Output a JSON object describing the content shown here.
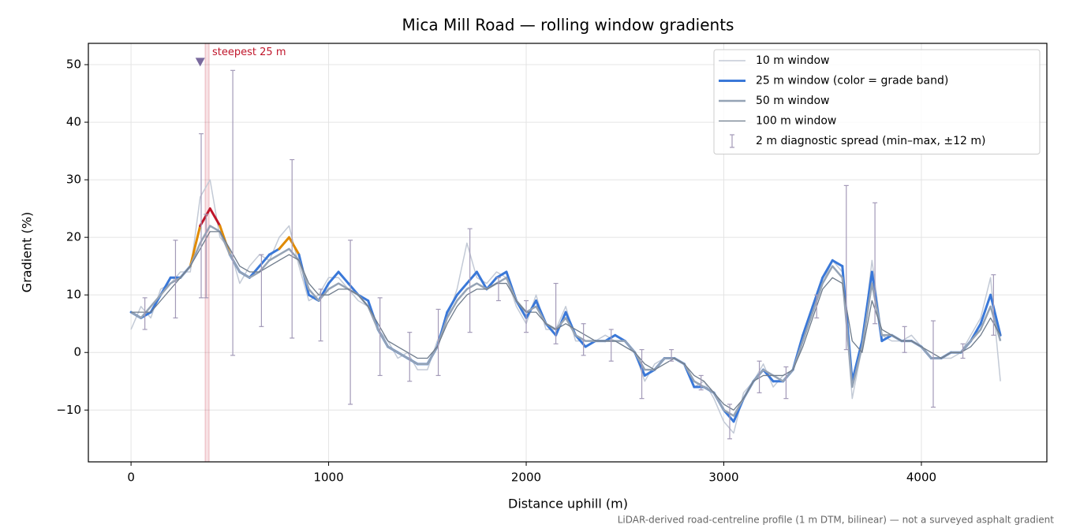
{
  "chart_data": {
    "type": "line",
    "title": "Mica Mill Road — rolling window gradients",
    "xlabel": "Distance uphill (m)",
    "ylabel": "Gradient (%)",
    "footnote": "LiDAR-derived road-centreline profile (1 m DTM, bilinear) — not a surveyed asphalt gradient",
    "xlim": [
      -216,
      4635
    ],
    "ylim": [
      -19,
      53.7
    ],
    "xticks": [
      0,
      1000,
      2000,
      3000,
      4000
    ],
    "yticks": [
      {
        "value": -10,
        "label": "−10"
      },
      0,
      10,
      20,
      30,
      40,
      50
    ],
    "grid": true,
    "legend": "upper right",
    "x": [
      0,
      50,
      100,
      150,
      200,
      250,
      300,
      350,
      400,
      450,
      500,
      550,
      600,
      650,
      700,
      750,
      800,
      850,
      900,
      950,
      1000,
      1050,
      1100,
      1150,
      1200,
      1250,
      1300,
      1350,
      1400,
      1450,
      1500,
      1550,
      1600,
      1650,
      1700,
      1750,
      1800,
      1850,
      1900,
      1950,
      2000,
      2050,
      2100,
      2150,
      2200,
      2250,
      2300,
      2350,
      2400,
      2450,
      2500,
      2550,
      2600,
      2650,
      2700,
      2750,
      2800,
      2850,
      2900,
      2950,
      3000,
      3050,
      3100,
      3150,
      3200,
      3250,
      3300,
      3350,
      3400,
      3450,
      3500,
      3550,
      3600,
      3650,
      3700,
      3750,
      3800,
      3850,
      3900,
      3950,
      4000,
      4050,
      4100,
      4150,
      4200,
      4250,
      4300,
      4350,
      4400
    ],
    "series": [
      {
        "name": "10 m window",
        "color": "#c3cad6",
        "width": 1.5,
        "values": [
          4,
          8,
          6,
          11,
          12,
          14,
          14,
          27,
          30,
          20,
          18,
          12,
          15,
          17,
          16,
          20,
          22,
          15,
          9,
          10,
          13,
          13,
          11,
          9,
          8,
          4,
          2,
          -1,
          0,
          -3,
          -3,
          2,
          6,
          11,
          19,
          13,
          12,
          14,
          13,
          8,
          5,
          10,
          4,
          4,
          8,
          2,
          2,
          2,
          3,
          2,
          1,
          0,
          -5,
          -2,
          -1,
          -1,
          -2,
          -6,
          -5,
          -8,
          -12,
          -14,
          -7,
          -5,
          -2,
          -6,
          -4,
          -3,
          3,
          8,
          12,
          16,
          14,
          -8,
          1,
          16,
          3,
          2,
          2,
          3,
          1,
          -1,
          -1,
          -1,
          0,
          3,
          6,
          13,
          -5
        ]
      },
      {
        "name": "25 m window (color = grade band)",
        "color": "#3a78d8",
        "width": 3,
        "values": [
          7,
          6,
          7,
          10,
          13,
          13,
          15,
          22,
          25,
          22,
          17,
          14,
          13,
          15,
          17,
          18,
          20,
          17,
          10,
          9,
          12,
          14,
          12,
          10,
          9,
          4,
          1,
          0,
          -1,
          -2,
          -2,
          1,
          7,
          10,
          12,
          14,
          11,
          13,
          14,
          9,
          6,
          9,
          5,
          3,
          7,
          3,
          1,
          2,
          2,
          3,
          2,
          0,
          -4,
          -3,
          -1,
          -1,
          -2,
          -6,
          -6,
          -7,
          -10,
          -12,
          -8,
          -5,
          -3,
          -5,
          -5,
          -3,
          3,
          8,
          13,
          16,
          15,
          -5,
          2,
          14,
          2,
          3,
          2,
          2,
          1,
          -1,
          -1,
          0,
          0,
          2,
          5,
          10,
          3
        ],
        "colors": [
          "#3a78d8",
          "#3a78d8",
          "#3a78d8",
          "#3a78d8",
          "#3a78d8",
          "#3a78d8",
          "#3a78d8",
          "#e08a00",
          "#c0162b",
          "#e08a00",
          "#3a78d8",
          "#3a78d8",
          "#3a78d8",
          "#3a78d8",
          "#3a78d8",
          "#3a78d8",
          "#e08a00",
          "#3a78d8",
          "#3a78d8",
          "#3a78d8",
          "#3a78d8",
          "#3a78d8",
          "#3a78d8",
          "#3a78d8",
          "#3a78d8",
          "#3a78d8",
          "#3a78d8",
          "#3a78d8",
          "#3a78d8",
          "#3a78d8",
          "#3a78d8",
          "#3a78d8",
          "#3a78d8",
          "#3a78d8",
          "#3a78d8",
          "#3a78d8",
          "#3a78d8",
          "#3a78d8",
          "#3a78d8",
          "#3a78d8",
          "#3a78d8",
          "#3a78d8",
          "#3a78d8",
          "#3a78d8",
          "#3a78d8",
          "#3a78d8",
          "#3a78d8",
          "#3a78d8",
          "#3a78d8",
          "#3a78d8",
          "#3a78d8",
          "#3a78d8",
          "#3a78d8",
          "#3a78d8",
          "#3a78d8",
          "#3a78d8",
          "#3a78d8",
          "#3a78d8",
          "#3a78d8",
          "#3a78d8",
          "#3a78d8",
          "#3a78d8",
          "#3a78d8",
          "#3a78d8",
          "#3a78d8",
          "#3a78d8",
          "#3a78d8",
          "#3a78d8",
          "#3a78d8",
          "#3a78d8",
          "#3a78d8",
          "#3a78d8",
          "#3a78d8",
          "#3a78d8",
          "#3a78d8",
          "#3a78d8",
          "#3a78d8",
          "#3a78d8",
          "#3a78d8",
          "#3a78d8",
          "#3a78d8",
          "#3a78d8",
          "#3a78d8",
          "#3a78d8",
          "#3a78d8",
          "#3a78d8",
          "#3a78d8",
          "#3a78d8",
          "#3a78d8"
        ]
      },
      {
        "name": "50 m window",
        "color": "#95a3b5",
        "width": 2.5,
        "values": [
          7,
          6,
          8,
          10,
          12,
          13,
          15,
          19,
          22,
          21,
          17,
          14,
          13,
          14,
          16,
          17,
          18,
          16,
          11,
          9,
          11,
          12,
          11,
          10,
          8,
          4,
          1,
          0,
          -1,
          -2,
          -2,
          1,
          6,
          9,
          11,
          12,
          11,
          12,
          13,
          9,
          7,
          8,
          5,
          4,
          6,
          3,
          2,
          2,
          2,
          2,
          2,
          0,
          -3,
          -3,
          -1,
          -1,
          -2,
          -5,
          -6,
          -7,
          -10,
          -11,
          -8,
          -5,
          -3,
          -4,
          -5,
          -3,
          2,
          7,
          12,
          15,
          13,
          -6,
          1,
          12,
          3,
          3,
          2,
          2,
          1,
          -1,
          -1,
          0,
          0,
          2,
          4,
          8,
          2
        ]
      },
      {
        "name": "100 m window",
        "color": "#6e7b8b",
        "width": 1.3,
        "values": [
          7,
          7,
          7,
          9,
          11,
          13,
          15,
          18,
          21,
          21,
          18,
          15,
          14,
          14,
          15,
          16,
          17,
          16,
          12,
          10,
          10,
          11,
          11,
          10,
          8,
          5,
          2,
          1,
          0,
          -1,
          -1,
          1,
          5,
          8,
          10,
          11,
          11,
          12,
          12,
          9,
          7,
          7,
          5,
          4,
          5,
          4,
          3,
          2,
          2,
          2,
          1,
          0,
          -2,
          -3,
          -2,
          -1,
          -2,
          -4,
          -5,
          -7,
          -9,
          -10,
          -8,
          -5,
          -4,
          -4,
          -4,
          -3,
          1,
          6,
          11,
          13,
          12,
          2,
          0,
          9,
          4,
          3,
          2,
          2,
          1,
          0,
          -1,
          0,
          0,
          1,
          3,
          6,
          3
        ]
      }
    ],
    "error_bars": {
      "name": "2 m diagnostic spread (min–max, ±12 m)",
      "color": "#a39ab8",
      "x": [
        70,
        225,
        355,
        380,
        515,
        660,
        815,
        960,
        1110,
        1260,
        1410,
        1555,
        1715,
        1860,
        2000,
        2150,
        2290,
        2430,
        2585,
        2735,
        2885,
        3030,
        3180,
        3315,
        3470,
        3620,
        3765,
        3915,
        4060,
        4210,
        4365
      ],
      "low": [
        4,
        6,
        9.5,
        9.5,
        -0.5,
        4.5,
        2.5,
        2,
        -9,
        -4,
        -5,
        -4,
        3.5,
        9,
        3.5,
        1.5,
        -0.5,
        -1.5,
        -8,
        -1.5,
        -6.5,
        -15,
        -7,
        -8,
        6,
        0.5,
        5,
        0,
        -9.5,
        -1,
        3
      ],
      "high": [
        9.5,
        19.5,
        38,
        24,
        49,
        17,
        33.5,
        11,
        19.5,
        9.5,
        3.5,
        7.5,
        21.5,
        13,
        9,
        12,
        5,
        4,
        0.5,
        0.5,
        -4,
        -9,
        -1.5,
        -2.5,
        10,
        29,
        26,
        4.5,
        5.5,
        1.5,
        13.5
      ]
    },
    "annotation": {
      "text": "steepest 25 m",
      "x": 350,
      "y": 50.5,
      "span": [
        375,
        395
      ],
      "color": "#c0162b",
      "marker_color": "#7a6a9e"
    }
  }
}
